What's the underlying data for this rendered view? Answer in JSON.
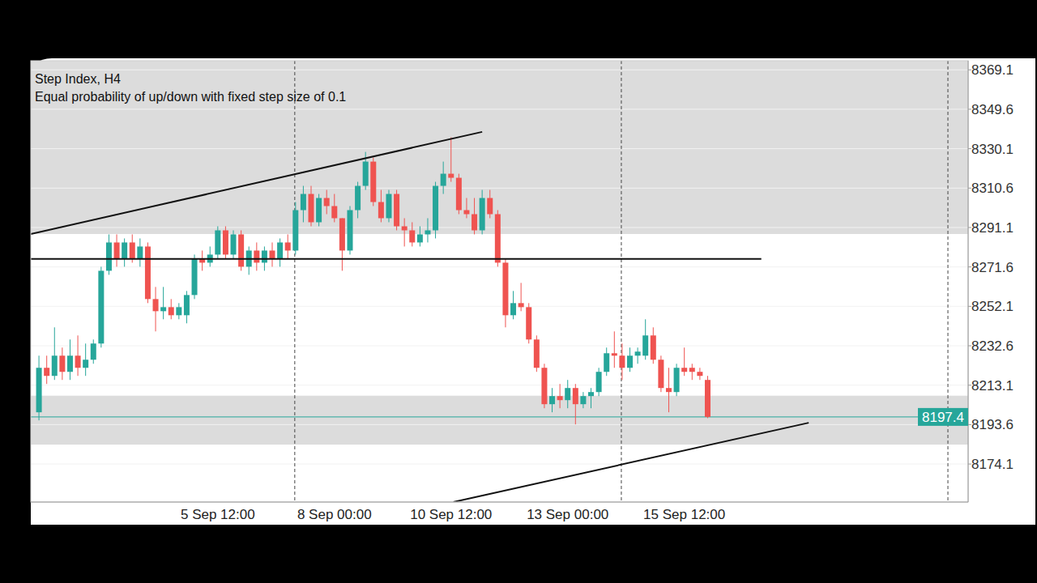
{
  "chart_data": {
    "type": "candlestick",
    "title": "Step Index, H4",
    "subtitle": "Equal probability of up/down with fixed step size of 0.1",
    "categories": [
      null,
      null,
      null,
      null,
      null,
      null,
      null,
      null,
      null,
      null,
      null,
      null,
      null,
      null,
      null,
      null,
      null,
      null,
      null,
      null,
      null,
      null,
      null,
      "5 Sep 12:00",
      null,
      null,
      null,
      null,
      null,
      null,
      null,
      null,
      null,
      null,
      null,
      null,
      null,
      null,
      "8 Sep 00:00",
      null,
      null,
      null,
      null,
      null,
      null,
      null,
      null,
      null,
      null,
      null,
      null,
      null,
      null,
      "10 Sep 12:00",
      null,
      null,
      null,
      null,
      null,
      null,
      null,
      null,
      null,
      null,
      null,
      null,
      null,
      null,
      "13 Sep 00:00",
      null,
      null,
      null,
      null,
      null,
      null,
      null,
      null,
      null,
      null,
      null,
      null,
      null,
      null,
      "15 Sep 12:00",
      null,
      null,
      null
    ],
    "open": [
      8199.7,
      8221.7,
      8217.7,
      8227.7,
      8219.7,
      8227.7,
      8221.7,
      8225.7,
      8233.7,
      8269.7,
      8283.7,
      8275.7,
      8283.7,
      8275.7,
      8281.7,
      8255.7,
      8249.7,
      8251.7,
      8247.7,
      8247.7,
      8257.7,
      8275.7,
      8273.7,
      8277.7,
      8289.7,
      8277.7,
      8287.7,
      8271.7,
      8279.7,
      8273.7,
      8279.7,
      8275.7,
      8283.7,
      8279.7,
      8299.7,
      8307.7,
      8293.7,
      8305.7,
      8301.7,
      8295.7,
      8279.7,
      8299.7,
      8311.7,
      8323.7,
      8303.7,
      8295.7,
      8307.7,
      8291.7,
      8289.7,
      8283.7,
      8287.7,
      8289.7,
      8311.7,
      8317.7,
      8315.7,
      8299.7,
      8297.7,
      8289.7,
      8305.7,
      8297.7,
      8273.7,
      8247.7,
      8253.7,
      8251.7,
      8235.7,
      8221.7,
      8203.7,
      8207.7,
      8205.7,
      8211.7,
      8203.7,
      8207.7,
      8209.7,
      8219.7,
      8228.9,
      8227.7,
      8221.7,
      8227.7,
      8227.7,
      8237.7,
      8225.7,
      8211.7,
      8209.7,
      8221.7,
      8221.7,
      8219.7,
      8215.7
    ],
    "high": [
      8227.7,
      8227.7,
      8241.7,
      8231.7,
      8235.7,
      8237.7,
      8233.7,
      8235.7,
      8271.7,
      8287.7,
      8287.7,
      8285.7,
      8287.7,
      8285.7,
      8283.7,
      8261.7,
      8261.7,
      8255.7,
      8253.7,
      8259.7,
      8277.7,
      8279.7,
      8281.7,
      8291.7,
      8291.7,
      8289.7,
      8289.7,
      8281.7,
      8283.7,
      8281.7,
      8283.7,
      8285.7,
      8287.7,
      8303.7,
      8311.7,
      8311.7,
      8307.7,
      8309.7,
      8307.7,
      8295.7,
      8301.7,
      8313.7,
      8328.5,
      8325.7,
      8309.7,
      8309.7,
      8309.7,
      8295.7,
      8293.7,
      8291.7,
      8295.7,
      8313.7,
      8323.7,
      8335.7,
      8317.7,
      8305.7,
      8305.7,
      8309.7,
      8309.7,
      8299.7,
      8275.7,
      8259.7,
      8263.7,
      8253.7,
      8237.7,
      8223.7,
      8211.7,
      8213.7,
      8215.7,
      8213.7,
      8209.7,
      8211.7,
      8221.7,
      8231.7,
      8239.7,
      8233.7,
      8231.7,
      8231.7,
      8245.7,
      8241.7,
      8227.7,
      8221.7,
      8223.7,
      8231.7,
      8223.7,
      8221.7,
      8217.7
    ],
    "low": [
      8195.7,
      8213.7,
      8215.7,
      8215.7,
      8215.7,
      8217.7,
      8217.7,
      8223.7,
      8231.7,
      8267.7,
      8271.7,
      8271.7,
      8273.7,
      8271.7,
      8253.7,
      8239.7,
      8245.7,
      8245.7,
      8245.7,
      8243.7,
      8255.7,
      8269.7,
      8271.7,
      8275.7,
      8275.7,
      8275.7,
      8269.7,
      8267.7,
      8269.7,
      8269.7,
      8271.7,
      8271.7,
      8275.7,
      8277.7,
      8293.7,
      8291.7,
      8291.7,
      8297.7,
      8293.7,
      8269.7,
      8277.7,
      8295.7,
      8309.7,
      8301.7,
      8293.7,
      8293.7,
      8289.7,
      8281.7,
      8281.7,
      8281.7,
      8283.7,
      8285.7,
      8307.7,
      8313.7,
      8297.7,
      8295.7,
      8287.7,
      8287.7,
      8295.7,
      8271.7,
      8241.7,
      8245.7,
      8249.7,
      8233.7,
      8219.7,
      8201.7,
      8199.7,
      8201.7,
      8201.7,
      8193.7,
      8201.7,
      8201.7,
      8207.7,
      8217.7,
      8221.7,
      8215.7,
      8219.7,
      8223.7,
      8225.7,
      8223.7,
      8209.7,
      8199.7,
      8207.7,
      8217.7,
      8215.7,
      8215.7,
      8196.8
    ],
    "close": [
      8221.7,
      8217.7,
      8227.7,
      8219.7,
      8227.7,
      8221.7,
      8225.7,
      8233.7,
      8269.7,
      8283.7,
      8275.7,
      8283.7,
      8275.7,
      8281.7,
      8255.7,
      8249.7,
      8251.7,
      8247.7,
      8251.7,
      8257.7,
      8275.7,
      8273.7,
      8277.7,
      8289.7,
      8277.7,
      8287.7,
      8271.7,
      8279.7,
      8273.7,
      8279.7,
      8275.7,
      8283.7,
      8279.7,
      8299.7,
      8307.7,
      8293.7,
      8305.7,
      8301.7,
      8295.7,
      8279.7,
      8299.7,
      8311.7,
      8323.7,
      8303.7,
      8295.7,
      8307.7,
      8291.7,
      8289.7,
      8283.7,
      8287.7,
      8289.7,
      8311.7,
      8317.7,
      8315.7,
      8299.7,
      8297.7,
      8289.7,
      8305.7,
      8297.7,
      8273.7,
      8247.7,
      8253.7,
      8251.7,
      8235.7,
      8221.7,
      8203.7,
      8207.7,
      8205.7,
      8211.7,
      8203.7,
      8207.7,
      8209.7,
      8219.7,
      8228.9,
      8227.7,
      8221.7,
      8227.7,
      8229.7,
      8237.7,
      8225.7,
      8211.7,
      8209.7,
      8221.7,
      8219.7,
      8219.7,
      8217.7,
      8197.4
    ],
    "xlim": [
      -1.05,
      119.5
    ],
    "ylim": [
      8155.3,
      8373.6
    ],
    "yticks": [
      8174.1,
      8193.6,
      8213.1,
      8232.6,
      8252.1,
      8271.6,
      8291.1,
      8310.6,
      8330.1,
      8349.6,
      8369.1
    ],
    "grid": true,
    "current_price": 8197.4,
    "zones": [
      {
        "from": 8287.9,
        "to": 8373.6
      },
      {
        "from": 8183.7,
        "to": 8207.9
      }
    ],
    "trend_lines": [
      {
        "x": [
          -1.05,
          57.0
        ],
        "y": [
          8287.9,
          8338.4
        ]
      },
      {
        "x": [
          53.3,
          99.0
        ],
        "y": [
          8155.3,
          8194.5
        ]
      }
    ],
    "horizontal_line": {
      "x": [
        -1.05,
        92.9
      ],
      "y": 8275.6
    },
    "period_separators": [
      32.9,
      74.9,
      116.9
    ]
  }
}
